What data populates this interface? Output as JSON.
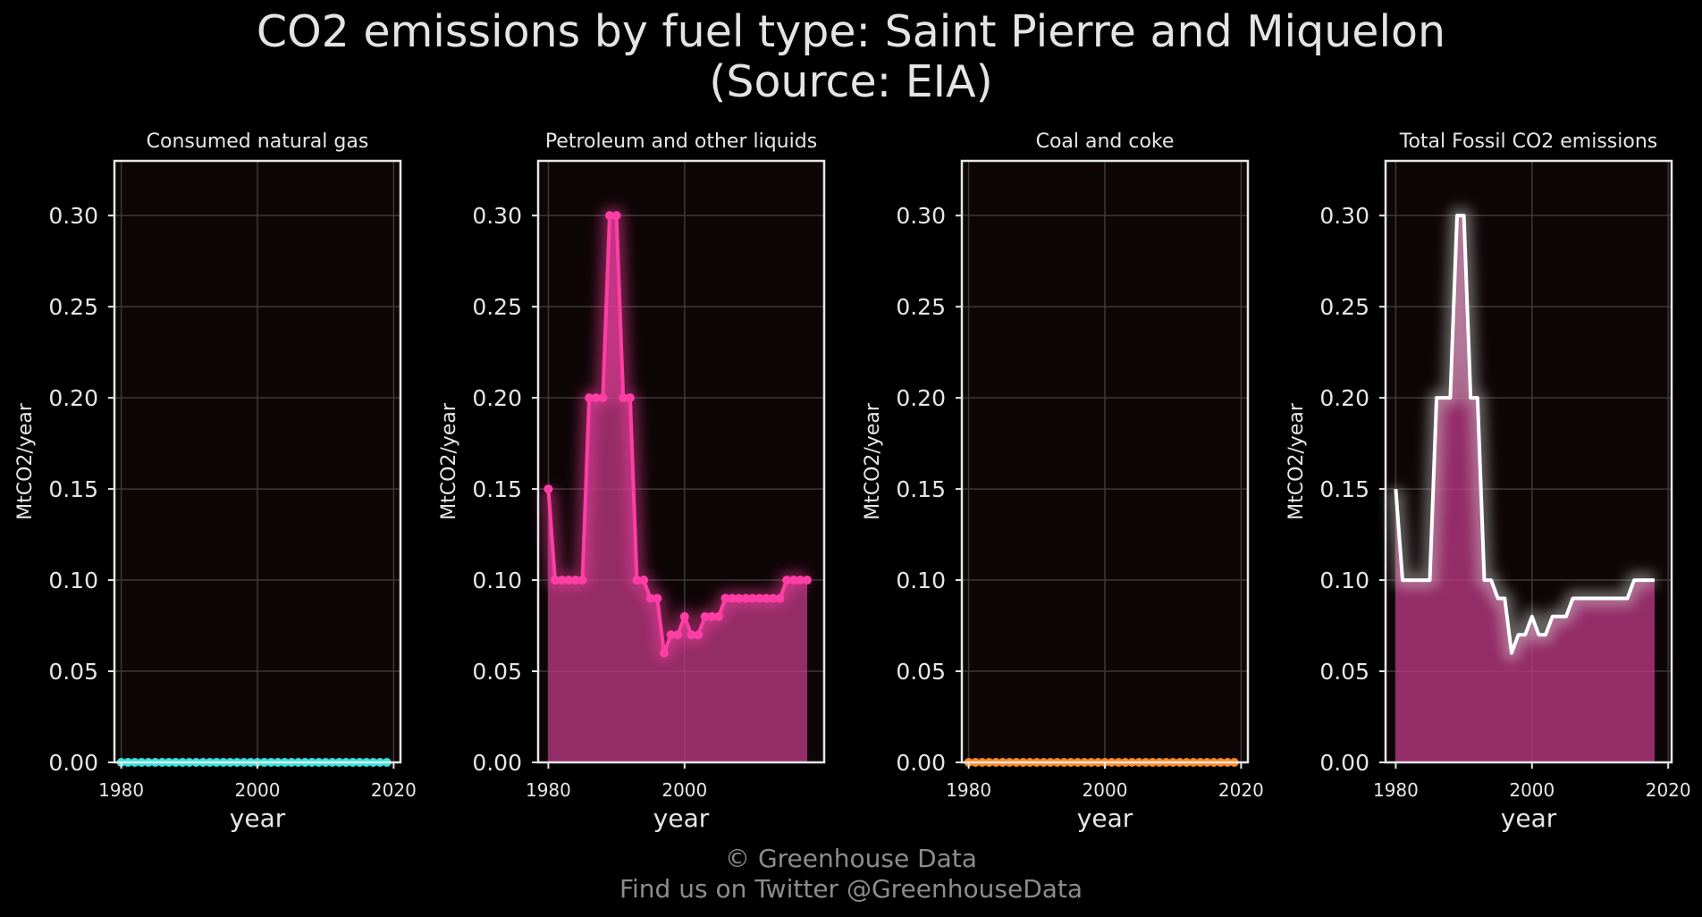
{
  "title": {
    "line1": "CO2 emissions by fuel type: Saint Pierre and Miquelon",
    "line2": "(Source: EIA)"
  },
  "footer": {
    "line1": "© Greenhouse Data",
    "line2": "Find us on Twitter @GreenhouseData"
  },
  "chart_data": [
    {
      "type": "area",
      "title": "Consumed natural gas",
      "xlabel": "year",
      "ylabel": "MtCO2/year",
      "xlim": [
        1979,
        2021
      ],
      "ylim": [
        0,
        0.33
      ],
      "xticks": [
        1980,
        2000,
        2020
      ],
      "yticks": [
        0.0,
        0.05,
        0.1,
        0.15,
        0.2,
        0.25,
        0.3
      ],
      "grid": true,
      "color": "#2ee6e0",
      "glow": "#2ee6e0",
      "fill": "#2ee6e0",
      "markers": true,
      "x": [
        1980,
        1981,
        1982,
        1983,
        1984,
        1985,
        1986,
        1987,
        1988,
        1989,
        1990,
        1991,
        1992,
        1993,
        1994,
        1995,
        1996,
        1997,
        1998,
        1999,
        2000,
        2001,
        2002,
        2003,
        2004,
        2005,
        2006,
        2007,
        2008,
        2009,
        2010,
        2011,
        2012,
        2013,
        2014,
        2015,
        2016,
        2017,
        2018,
        2019
      ],
      "y": [
        0,
        0,
        0,
        0,
        0,
        0,
        0,
        0,
        0,
        0,
        0,
        0,
        0,
        0,
        0,
        0,
        0,
        0,
        0,
        0,
        0,
        0,
        0,
        0,
        0,
        0,
        0,
        0,
        0,
        0,
        0,
        0,
        0,
        0,
        0,
        0,
        0,
        0,
        0,
        0
      ]
    },
    {
      "type": "area",
      "title": "Petroleum and other liquids",
      "xlabel": "year",
      "ylabel": "MtCO2/year",
      "xlim": [
        1978.5,
        2020.5
      ],
      "ylim": [
        0,
        0.33
      ],
      "xticks": [
        1980,
        2000
      ],
      "yticks": [
        0.0,
        0.05,
        0.1,
        0.15,
        0.2,
        0.25,
        0.3
      ],
      "grid": true,
      "color": "#ff3ea5",
      "glow": "#ff3ea5",
      "fill": "#c13a88",
      "markers": true,
      "x": [
        1980,
        1981,
        1982,
        1983,
        1984,
        1985,
        1986,
        1987,
        1988,
        1989,
        1990,
        1991,
        1992,
        1993,
        1994,
        1995,
        1996,
        1997,
        1998,
        1999,
        2000,
        2001,
        2002,
        2003,
        2004,
        2005,
        2006,
        2007,
        2008,
        2009,
        2010,
        2011,
        2012,
        2013,
        2014,
        2015,
        2016,
        2017,
        2018
      ],
      "y": [
        0.15,
        0.1,
        0.1,
        0.1,
        0.1,
        0.1,
        0.2,
        0.2,
        0.2,
        0.3,
        0.3,
        0.2,
        0.2,
        0.1,
        0.1,
        0.09,
        0.09,
        0.06,
        0.07,
        0.07,
        0.08,
        0.07,
        0.07,
        0.08,
        0.08,
        0.08,
        0.09,
        0.09,
        0.09,
        0.09,
        0.09,
        0.09,
        0.09,
        0.09,
        0.09,
        0.1,
        0.1,
        0.1,
        0.1
      ]
    },
    {
      "type": "area",
      "title": "Coal and coke",
      "xlabel": "year",
      "ylabel": "MtCO2/year",
      "xlim": [
        1979,
        2021
      ],
      "ylim": [
        0,
        0.33
      ],
      "xticks": [
        1980,
        2000,
        2020
      ],
      "yticks": [
        0.0,
        0.05,
        0.1,
        0.15,
        0.2,
        0.25,
        0.3
      ],
      "grid": true,
      "color": "#ff8a1f",
      "glow": "#ff8a1f",
      "fill": "#ff8a1f",
      "markers": true,
      "x": [
        1980,
        1981,
        1982,
        1983,
        1984,
        1985,
        1986,
        1987,
        1988,
        1989,
        1990,
        1991,
        1992,
        1993,
        1994,
        1995,
        1996,
        1997,
        1998,
        1999,
        2000,
        2001,
        2002,
        2003,
        2004,
        2005,
        2006,
        2007,
        2008,
        2009,
        2010,
        2011,
        2012,
        2013,
        2014,
        2015,
        2016,
        2017,
        2018,
        2019
      ],
      "y": [
        0,
        0,
        0,
        0,
        0,
        0,
        0,
        0,
        0,
        0,
        0,
        0,
        0,
        0,
        0,
        0,
        0,
        0,
        0,
        0,
        0,
        0,
        0,
        0,
        0,
        0,
        0,
        0,
        0,
        0,
        0,
        0,
        0,
        0,
        0,
        0,
        0,
        0,
        0,
        0
      ]
    },
    {
      "type": "area",
      "title": "Total Fossil CO2 emissions",
      "xlabel": "year",
      "ylabel": "MtCO2/year",
      "xlim": [
        1978.5,
        2020.5
      ],
      "ylim": [
        0,
        0.33
      ],
      "xticks": [
        1980,
        2000,
        2020
      ],
      "yticks": [
        0.0,
        0.05,
        0.1,
        0.15,
        0.2,
        0.25,
        0.3
      ],
      "grid": true,
      "color": "#ffffff",
      "glow": "#d8d8d8",
      "fill": "#c13a88",
      "markers": false,
      "x": [
        1980,
        1981,
        1982,
        1983,
        1984,
        1985,
        1986,
        1987,
        1988,
        1989,
        1990,
        1991,
        1992,
        1993,
        1994,
        1995,
        1996,
        1997,
        1998,
        1999,
        2000,
        2001,
        2002,
        2003,
        2004,
        2005,
        2006,
        2007,
        2008,
        2009,
        2010,
        2011,
        2012,
        2013,
        2014,
        2015,
        2016,
        2017,
        2018
      ],
      "y": [
        0.15,
        0.1,
        0.1,
        0.1,
        0.1,
        0.1,
        0.2,
        0.2,
        0.2,
        0.3,
        0.3,
        0.2,
        0.2,
        0.1,
        0.1,
        0.09,
        0.09,
        0.06,
        0.07,
        0.07,
        0.08,
        0.07,
        0.07,
        0.08,
        0.08,
        0.08,
        0.09,
        0.09,
        0.09,
        0.09,
        0.09,
        0.09,
        0.09,
        0.09,
        0.09,
        0.1,
        0.1,
        0.1,
        0.1
      ]
    }
  ]
}
